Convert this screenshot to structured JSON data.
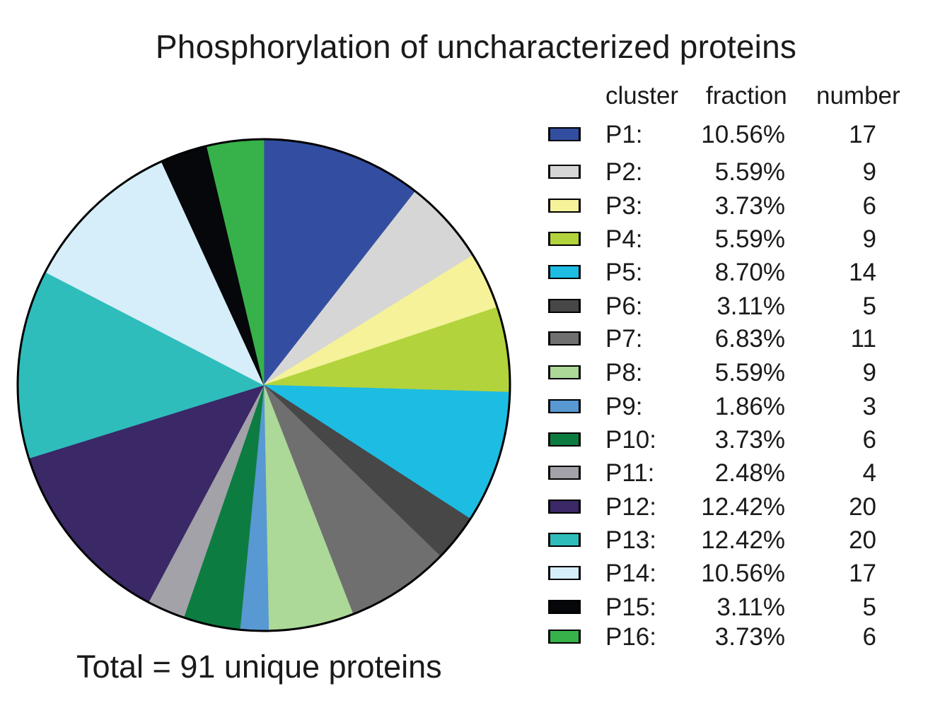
{
  "chart_data": {
    "type": "pie",
    "title": "Phosphorylation of uncharacterized proteins",
    "footer": "Total = 91 unique proteins",
    "column_headers": [
      "cluster",
      "fraction",
      "number"
    ],
    "slices": [
      {
        "label": "P1:",
        "fraction": "10.56%",
        "number": 17,
        "color": "#334ea1"
      },
      {
        "label": "P2:",
        "fraction": "5.59%",
        "number": 9,
        "color": "#d6d6d6"
      },
      {
        "label": "P3:",
        "fraction": "3.73%",
        "number": 6,
        "color": "#f5f29a"
      },
      {
        "label": "P4:",
        "fraction": "5.59%",
        "number": 9,
        "color": "#b2d33c"
      },
      {
        "label": "P5:",
        "fraction": "8.70%",
        "number": 14,
        "color": "#1dbce3"
      },
      {
        "label": "P6:",
        "fraction": "3.11%",
        "number": 5,
        "color": "#474747"
      },
      {
        "label": "P7:",
        "fraction": "6.83%",
        "number": 11,
        "color": "#6f6f6f"
      },
      {
        "label": "P8:",
        "fraction": "5.59%",
        "number": 9,
        "color": "#acd898"
      },
      {
        "label": "P9:",
        "fraction": "1.86%",
        "number": 3,
        "color": "#5898d3"
      },
      {
        "label": "P10:",
        "fraction": "3.73%",
        "number": 6,
        "color": "#0d7c41"
      },
      {
        "label": "P11:",
        "fraction": "2.48%",
        "number": 4,
        "color": "#a2a2a8"
      },
      {
        "label": "P12:",
        "fraction": "12.42%",
        "number": 20,
        "color": "#3a2867"
      },
      {
        "label": "P13:",
        "fraction": "12.42%",
        "number": 20,
        "color": "#2fbdbb"
      },
      {
        "label": "P14:",
        "fraction": "10.56%",
        "number": 17,
        "color": "#d6eef9"
      },
      {
        "label": "P15:",
        "fraction": "3.11%",
        "number": 5,
        "color": "#05070a"
      },
      {
        "label": "P16:",
        "fraction": "3.73%",
        "number": 6,
        "color": "#37b24a"
      }
    ]
  }
}
